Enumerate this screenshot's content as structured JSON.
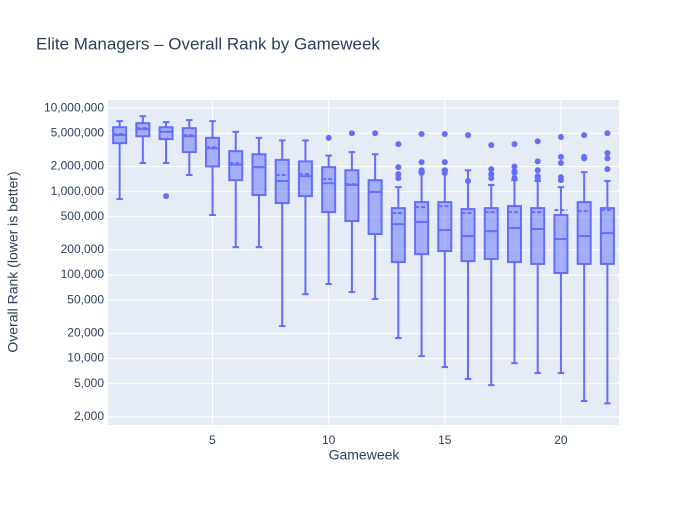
{
  "chart_data": {
    "type": "box",
    "title": "Elite Managers – Overall Rank by Gameweek",
    "x_label": "Gameweek",
    "y_label": "Overall Rank (lower is better)",
    "color": "#636efa",
    "log_y": true,
    "grid": true,
    "xlim": [
      0.5,
      22.5
    ],
    "xticks": [
      5,
      10,
      15,
      20
    ],
    "ylim": [
      1600,
      12500000
    ],
    "yticks": [
      {
        "value": 2000,
        "label": "2,000"
      },
      {
        "value": 5000,
        "label": "5,000"
      },
      {
        "value": 10000,
        "label": "10,000"
      },
      {
        "value": 20000,
        "label": "20,000"
      },
      {
        "value": 50000,
        "label": "50,000"
      },
      {
        "value": 100000,
        "label": "100,000"
      },
      {
        "value": 200000,
        "label": "200,000"
      },
      {
        "value": 500000,
        "label": "500,000"
      },
      {
        "value": 1000000,
        "label": "1,000,000"
      },
      {
        "value": 2000000,
        "label": "2,000,000"
      },
      {
        "value": 5000000,
        "label": "5,000,000"
      },
      {
        "value": 10000000,
        "label": "10,000,000"
      }
    ],
    "x": [
      1,
      2,
      3,
      4,
      5,
      6,
      7,
      8,
      9,
      10,
      11,
      12,
      13,
      14,
      15,
      16,
      17,
      18,
      19,
      20,
      21,
      22
    ],
    "lowerfence": [
      813000,
      2200000,
      2200000,
      1580000,
      524000,
      216000,
      216000,
      24500,
      59000,
      78000,
      62500,
      51600,
      17600,
      10700,
      7900,
      5700,
      4800,
      8800,
      6700,
      6700,
      3100,
      2900
    ],
    "q1": [
      3800000,
      4600000,
      4250000,
      2970000,
      2000000,
      1370000,
      908000,
      728000,
      883000,
      568000,
      444000,
      310000,
      143000,
      178000,
      194000,
      147000,
      156000,
      143000,
      136000,
      106000,
      136000,
      136000
    ],
    "median": [
      4750000,
      5600000,
      5200000,
      4600000,
      3300000,
      2100000,
      1960000,
      1340000,
      1530000,
      1260000,
      1200000,
      990000,
      408000,
      432000,
      346000,
      293000,
      336000,
      366000,
      356000,
      270000,
      293000,
      318000
    ],
    "q3": [
      5900000,
      6600000,
      5900000,
      5750000,
      4400000,
      3050000,
      2800000,
      2400000,
      2300000,
      1960000,
      1800000,
      1370000,
      634000,
      748000,
      748000,
      617000,
      634000,
      670000,
      634000,
      524000,
      748000,
      634000
    ],
    "upperfence": [
      6980000,
      8000000,
      6800000,
      7180000,
      6980000,
      5200000,
      4400000,
      4100000,
      4100000,
      2700000,
      2970000,
      2800000,
      1130000,
      1710000,
      1800000,
      1800000,
      1200000,
      1370000,
      1340000,
      1130000,
      1710000,
      1340000
    ],
    "mean": [
      4900000,
      5750000,
      5200000,
      4750000,
      3400000,
      2200000,
      1960000,
      1580000,
      1620000,
      1410000,
      1230000,
      990000,
      553000,
      652000,
      670000,
      553000,
      568000,
      568000,
      568000,
      600000,
      583000,
      600000
    ],
    "outliers": [
      [],
      [],
      [
        883000
      ],
      [],
      [],
      [],
      [],
      [],
      [],
      [
        4400000
      ],
      [
        5000000
      ],
      [
        5000000
      ],
      [
        3700000,
        1960000,
        1620000,
        1450000
      ],
      [
        4900000,
        2250000,
        1800000,
        1670000
      ],
      [
        4900000,
        2250000,
        1800000,
        1670000
      ],
      [
        4750000,
        1340000
      ],
      [
        3600000,
        1860000,
        1620000,
        1450000
      ],
      [
        3700000,
        2000000,
        1760000,
        1670000,
        1450000
      ],
      [
        4000000,
        2300000,
        1800000,
        1530000,
        1450000
      ],
      [
        4500000,
        2600000,
        2200000,
        1490000,
        1370000
      ],
      [
        4750000,
        2600000,
        2500000
      ],
      [
        5000000,
        2900000,
        2500000,
        1860000
      ]
    ]
  }
}
